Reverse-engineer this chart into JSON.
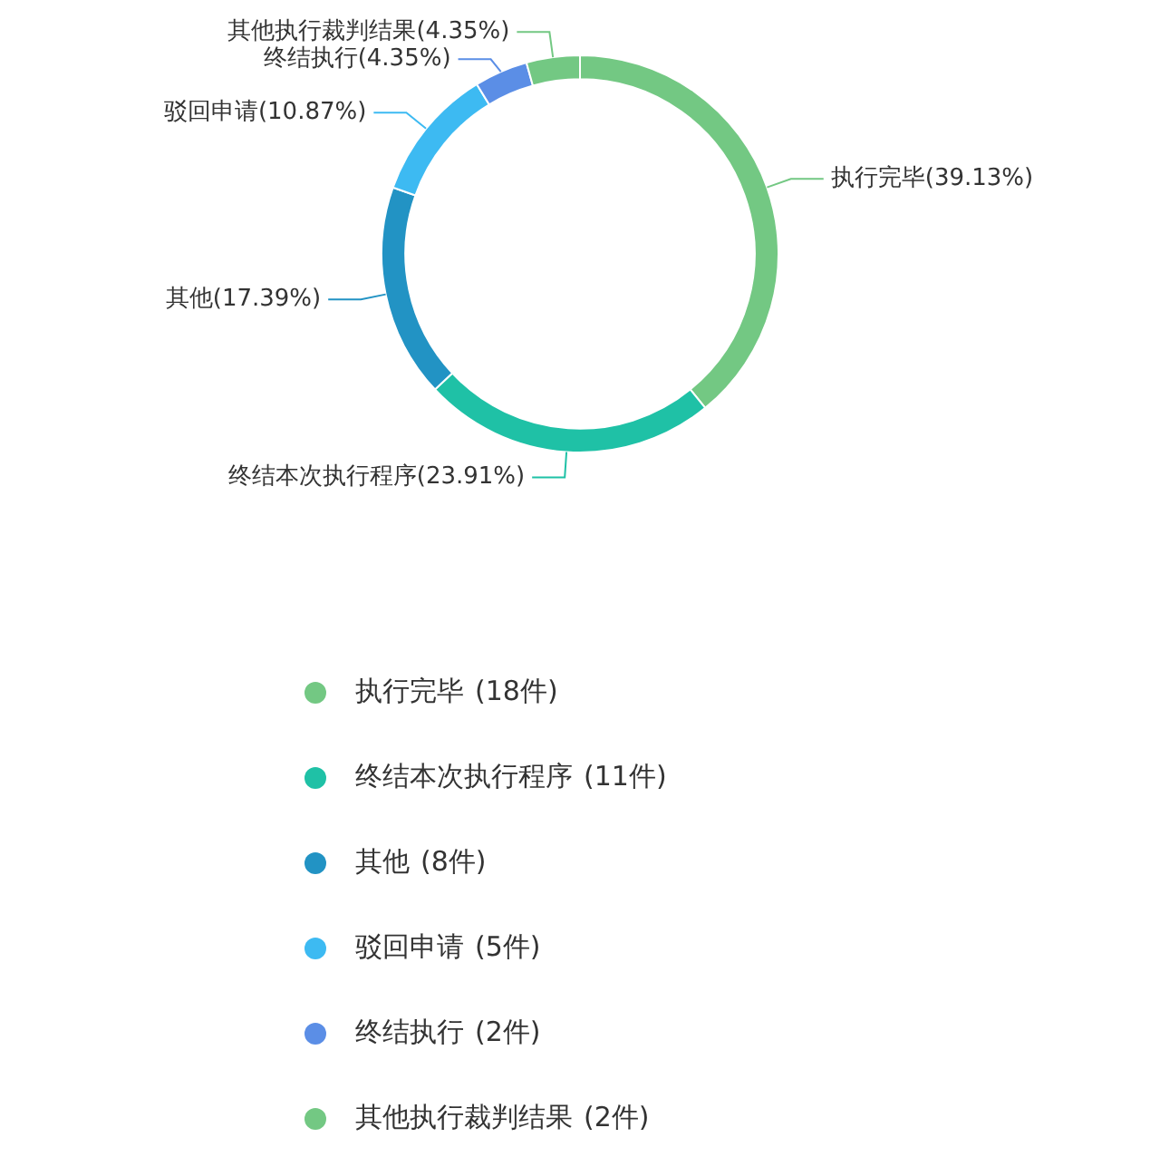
{
  "chart_data": {
    "type": "donut",
    "categories": [
      "执行完毕",
      "终结本次执行程序",
      "其他",
      "驳回申请",
      "终结执行",
      "其他执行裁判结果"
    ],
    "values": [
      39.13,
      23.91,
      17.39,
      10.87,
      4.35,
      4.35
    ],
    "colors": [
      "#73c883",
      "#1fc1a6",
      "#2293c4",
      "#3dbaf2",
      "#5b8ee6",
      "#73c883"
    ],
    "value_labels": [
      "(39.13%)",
      "(23.91%)",
      "(17.39%)",
      "(10.87%)",
      "(4.35%)",
      "(4.35%)"
    ],
    "annotations": [
      "(18件)",
      "(11件)",
      "(8件)",
      "(5件)",
      "(2件)",
      "(2件)"
    ],
    "legend": "bottom"
  }
}
